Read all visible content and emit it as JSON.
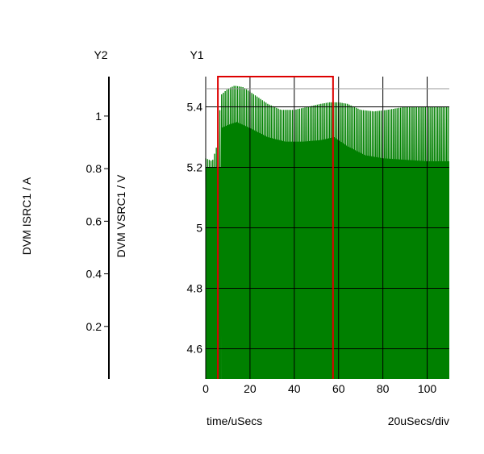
{
  "chart_data": {
    "type": "line",
    "y1_axis": {
      "name": "Y1",
      "label": "DVM VSRC1 / V",
      "range": [
        4.5,
        5.5
      ],
      "ticks": [
        {
          "value": 4.6,
          "label": "4.6"
        },
        {
          "value": 4.8,
          "label": "4.8"
        },
        {
          "value": 5.0,
          "label": "5"
        },
        {
          "value": 5.2,
          "label": "5.2"
        },
        {
          "value": 5.4,
          "label": "5.4"
        }
      ]
    },
    "y2_axis": {
      "name": "Y2",
      "label": "DVM ISRC1 / A",
      "range": [
        0,
        1.15
      ],
      "ticks": [
        {
          "value": 0.2,
          "label": "0.2"
        },
        {
          "value": 0.4,
          "label": "0.4"
        },
        {
          "value": 0.6,
          "label": "0.6"
        },
        {
          "value": 0.8,
          "label": "0.8"
        },
        {
          "value": 1.0,
          "label": "1"
        }
      ]
    },
    "x_axis": {
      "label": "time/uSecs",
      "scale_label": "20uSecs/div",
      "range": [
        0,
        110
      ],
      "ticks": [
        {
          "value": 0,
          "label": "0"
        },
        {
          "value": 20,
          "label": "20"
        },
        {
          "value": 40,
          "label": "40"
        },
        {
          "value": 60,
          "label": "60"
        },
        {
          "value": 80,
          "label": "80"
        },
        {
          "value": 100,
          "label": "100"
        }
      ]
    },
    "grid": true,
    "series": [
      {
        "axis": "y1",
        "color": "#008000",
        "ripple_period_us": 0.8,
        "upper_envelope": [
          [
            0,
            5.23
          ],
          [
            3,
            5.22
          ],
          [
            5,
            5.27
          ],
          [
            7,
            5.44
          ],
          [
            10,
            5.46
          ],
          [
            13,
            5.47
          ],
          [
            17,
            5.465
          ],
          [
            22,
            5.44
          ],
          [
            28,
            5.41
          ],
          [
            34,
            5.39
          ],
          [
            40,
            5.39
          ],
          [
            46,
            5.4
          ],
          [
            52,
            5.41
          ],
          [
            56,
            5.415
          ],
          [
            60,
            5.415
          ],
          [
            64,
            5.41
          ],
          [
            70,
            5.39
          ],
          [
            76,
            5.385
          ],
          [
            82,
            5.39
          ],
          [
            90,
            5.4
          ],
          [
            100,
            5.4
          ],
          [
            110,
            5.4
          ]
        ],
        "lower_envelope": [
          [
            0,
            4.5
          ],
          [
            110,
            4.5
          ]
        ],
        "mid_envelope": [
          [
            7,
            5.33
          ],
          [
            10,
            5.34
          ],
          [
            14,
            5.35
          ],
          [
            20,
            5.33
          ],
          [
            28,
            5.3
          ],
          [
            36,
            5.285
          ],
          [
            44,
            5.285
          ],
          [
            52,
            5.29
          ],
          [
            58,
            5.3
          ],
          [
            64,
            5.27
          ],
          [
            72,
            5.24
          ],
          [
            80,
            5.23
          ],
          [
            90,
            5.225
          ],
          [
            100,
            5.22
          ],
          [
            110,
            5.22
          ]
        ]
      },
      {
        "axis": "y2",
        "color": "#dd0000",
        "points": [
          [
            5.5,
            0
          ],
          [
            5.5,
            1.15
          ],
          [
            57.5,
            1.15
          ],
          [
            57.5,
            0
          ]
        ]
      }
    ],
    "reference_lines": [
      {
        "axis": "y1",
        "value": 5.46,
        "color": "#999999"
      }
    ]
  }
}
